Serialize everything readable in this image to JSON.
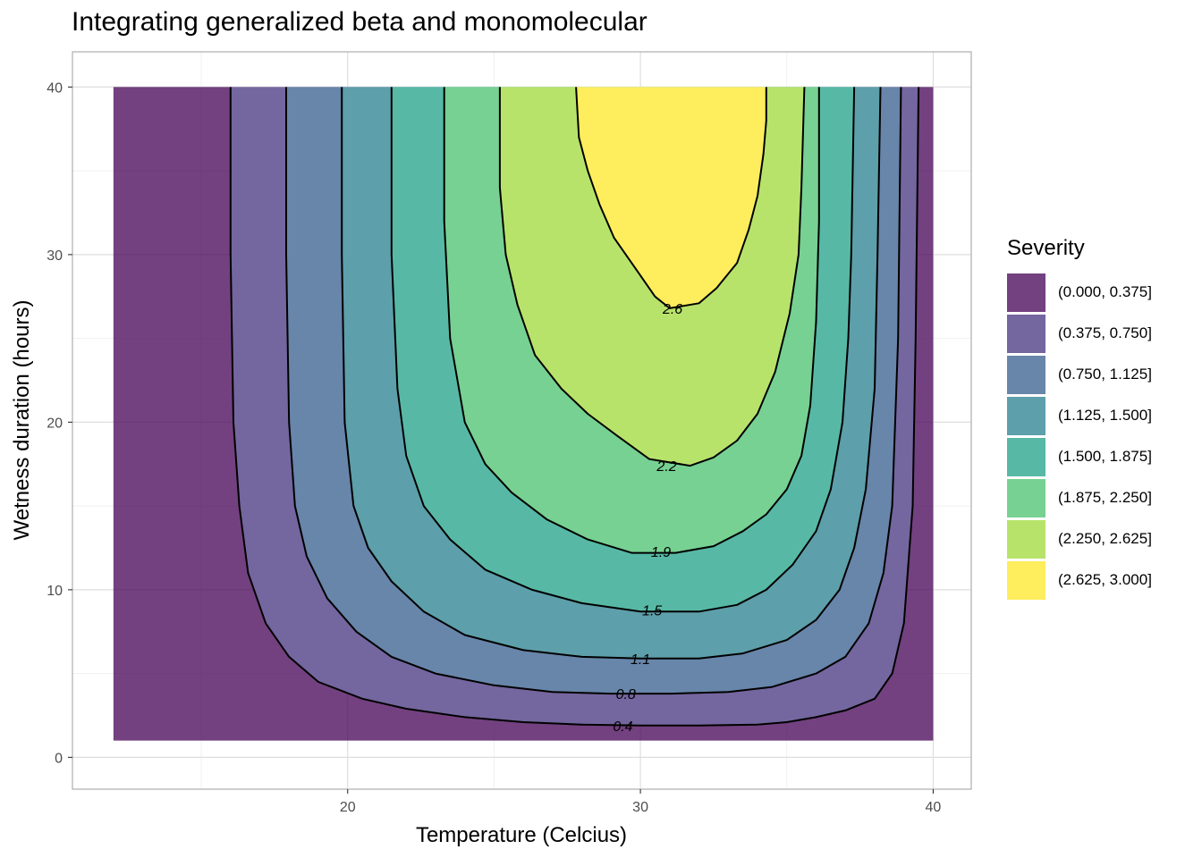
{
  "title": "Integrating generalized beta and monomolecular",
  "chart_data": {
    "type": "filled-contour",
    "title": "Integrating generalized beta and monomolecular",
    "xlabel": "Temperature (Celcius)",
    "ylabel": "Wetness duration (hours)",
    "xlim": [
      10.6,
      41.3
    ],
    "ylim": [
      -1.9,
      42.1
    ],
    "x_ticks": [
      20,
      30,
      40
    ],
    "y_ticks": [
      0,
      10,
      20,
      30,
      40
    ],
    "data_extent": {
      "x": [
        12,
        40
      ],
      "y": [
        1,
        40
      ]
    },
    "grid": true,
    "legend_placement": "right",
    "legend": {
      "title": "Severity",
      "bins": [
        {
          "label": "(0.000, 0.375]",
          "color": "#440154"
        },
        {
          "label": "(0.375, 0.750]",
          "color": "#46337E"
        },
        {
          "label": "(0.750, 1.125]",
          "color": "#365C8D"
        },
        {
          "label": "(1.125, 1.500]",
          "color": "#277F8E"
        },
        {
          "label": "(1.500, 1.875]",
          "color": "#1FA187"
        },
        {
          "label": "(1.875, 2.250]",
          "color": "#4AC16D"
        },
        {
          "label": "(2.250, 2.625]",
          "color": "#A0DA39"
        },
        {
          "label": "(2.625, 3.000]",
          "color": "#FDE725"
        }
      ]
    },
    "fill_opacity": 0.75,
    "contour_lines": [
      {
        "label": "0.4",
        "label_pos": [
          29.4,
          1.9
        ],
        "points": [
          [
            16.0,
            40
          ],
          [
            16.0,
            30
          ],
          [
            16.1,
            20
          ],
          [
            16.3,
            15
          ],
          [
            16.6,
            11
          ],
          [
            17.2,
            8
          ],
          [
            18,
            6
          ],
          [
            19,
            4.5
          ],
          [
            20.5,
            3.5
          ],
          [
            22,
            2.9
          ],
          [
            24,
            2.4
          ],
          [
            26,
            2.1
          ],
          [
            28,
            1.95
          ],
          [
            30,
            1.9
          ],
          [
            32,
            1.9
          ],
          [
            34,
            1.95
          ],
          [
            35,
            2.1
          ],
          [
            36,
            2.4
          ],
          [
            37,
            2.8
          ],
          [
            38,
            3.5
          ],
          [
            38.6,
            5
          ],
          [
            39,
            8
          ],
          [
            39.3,
            15
          ],
          [
            39.4,
            25
          ],
          [
            39.5,
            40
          ]
        ]
      },
      {
        "label": "0.8",
        "label_pos": [
          29.5,
          3.8
        ],
        "points": [
          [
            17.9,
            40
          ],
          [
            17.9,
            30
          ],
          [
            18,
            20
          ],
          [
            18.2,
            15
          ],
          [
            18.6,
            12
          ],
          [
            19.3,
            9.5
          ],
          [
            20.3,
            7.5
          ],
          [
            21.5,
            6
          ],
          [
            23,
            5
          ],
          [
            25,
            4.3
          ],
          [
            27,
            3.9
          ],
          [
            29,
            3.8
          ],
          [
            31,
            3.8
          ],
          [
            33,
            3.9
          ],
          [
            34.5,
            4.2
          ],
          [
            36,
            5
          ],
          [
            37,
            6
          ],
          [
            37.8,
            8
          ],
          [
            38.3,
            11
          ],
          [
            38.6,
            15
          ],
          [
            38.8,
            25
          ],
          [
            38.9,
            40
          ]
        ]
      },
      {
        "label": "1.1",
        "label_pos": [
          30.0,
          5.9
        ],
        "points": [
          [
            19.8,
            40
          ],
          [
            19.8,
            30
          ],
          [
            19.9,
            20
          ],
          [
            20.2,
            15
          ],
          [
            20.7,
            12.5
          ],
          [
            21.5,
            10.5
          ],
          [
            22.6,
            8.7
          ],
          [
            24,
            7.3
          ],
          [
            26,
            6.4
          ],
          [
            28,
            6.0
          ],
          [
            30,
            5.9
          ],
          [
            32,
            5.9
          ],
          [
            33.5,
            6.2
          ],
          [
            35,
            7
          ],
          [
            36,
            8.2
          ],
          [
            36.8,
            10
          ],
          [
            37.3,
            12.5
          ],
          [
            37.7,
            16
          ],
          [
            38,
            22
          ],
          [
            38.1,
            30
          ],
          [
            38.2,
            40
          ]
        ]
      },
      {
        "label": "1.5",
        "label_pos": [
          30.4,
          8.8
        ],
        "points": [
          [
            21.5,
            40
          ],
          [
            21.5,
            30
          ],
          [
            21.7,
            22
          ],
          [
            22,
            18
          ],
          [
            22.6,
            15
          ],
          [
            23.5,
            13
          ],
          [
            24.7,
            11.2
          ],
          [
            26.3,
            10
          ],
          [
            28,
            9.2
          ],
          [
            30,
            8.7
          ],
          [
            32,
            8.7
          ],
          [
            33.3,
            9.1
          ],
          [
            34.3,
            10
          ],
          [
            35.2,
            11.5
          ],
          [
            36,
            13.5
          ],
          [
            36.5,
            16
          ],
          [
            36.9,
            20
          ],
          [
            37.1,
            25
          ],
          [
            37.2,
            30
          ],
          [
            37.3,
            40
          ]
        ]
      },
      {
        "label": "1.9",
        "label_pos": [
          30.7,
          12.3
        ],
        "points": [
          [
            23.3,
            40
          ],
          [
            23.3,
            32
          ],
          [
            23.5,
            25
          ],
          [
            24,
            20
          ],
          [
            24.7,
            17.5
          ],
          [
            25.6,
            15.8
          ],
          [
            26.8,
            14.2
          ],
          [
            28.2,
            13
          ],
          [
            29.7,
            12.2
          ],
          [
            31.2,
            12.2
          ],
          [
            32.5,
            12.6
          ],
          [
            33.5,
            13.5
          ],
          [
            34.3,
            14.5
          ],
          [
            35,
            16
          ],
          [
            35.5,
            18
          ],
          [
            35.8,
            21
          ],
          [
            36,
            26
          ],
          [
            36.1,
            32
          ],
          [
            36.1,
            40
          ]
        ]
      },
      {
        "label": "2.2",
        "label_pos": [
          30.9,
          17.4
        ],
        "points": [
          [
            25.2,
            40
          ],
          [
            25.2,
            34
          ],
          [
            25.4,
            30
          ],
          [
            25.8,
            27
          ],
          [
            26.4,
            24
          ],
          [
            27.3,
            22
          ],
          [
            28.2,
            20.5
          ],
          [
            29.2,
            19.2
          ],
          [
            30.3,
            17.8
          ],
          [
            31.7,
            17.4
          ],
          [
            32.5,
            17.9
          ],
          [
            33.3,
            18.9
          ],
          [
            34,
            20.5
          ],
          [
            34.6,
            23
          ],
          [
            35.1,
            26.5
          ],
          [
            35.4,
            30
          ],
          [
            35.5,
            34
          ],
          [
            35.6,
            40
          ]
        ]
      },
      {
        "label": "2.6",
        "label_pos": [
          31.1,
          26.8
        ],
        "points": [
          [
            27.8,
            40
          ],
          [
            27.9,
            37
          ],
          [
            28.2,
            35
          ],
          [
            28.6,
            33
          ],
          [
            29.1,
            31
          ],
          [
            29.9,
            29
          ],
          [
            30.5,
            27.5
          ],
          [
            31.0,
            26.8
          ],
          [
            32.0,
            27.1
          ],
          [
            32.6,
            28
          ],
          [
            33.3,
            29.5
          ],
          [
            33.7,
            31.5
          ],
          [
            34.0,
            33.5
          ],
          [
            34.2,
            36
          ],
          [
            34.3,
            38
          ],
          [
            34.3,
            40
          ]
        ]
      }
    ]
  }
}
